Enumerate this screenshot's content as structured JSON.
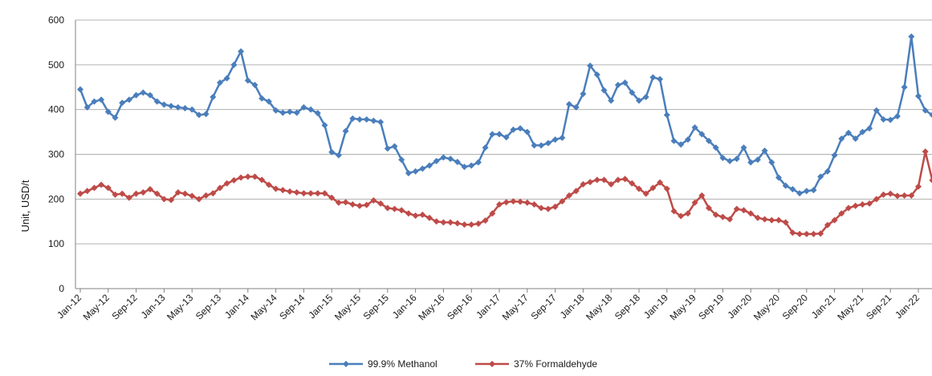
{
  "chart_data": {
    "type": "line",
    "title": "",
    "ylabel": "Unit, USD/t",
    "xlabel": "",
    "ylim": [
      0,
      600
    ],
    "y_ticks": [
      0,
      100,
      200,
      300,
      400,
      500,
      600
    ],
    "grid": "horizontal",
    "legend_position": "bottom",
    "x_tick_labels": [
      "Jan-12",
      "May-12",
      "Sep-12",
      "Jan-13",
      "May-13",
      "Sep-13",
      "Jan-14",
      "May-14",
      "Sep-14",
      "Jan-15",
      "May-15",
      "Sep-15",
      "Jan-16",
      "May-16",
      "Sep-16",
      "Jan-17",
      "May-17",
      "Sep-17",
      "Jan-18",
      "May-18",
      "Sep-18",
      "Jan-19",
      "May-19",
      "Sep-19",
      "Jan-20",
      "May-20",
      "Sep-20",
      "Jan-21",
      "May-21",
      "Sep-21",
      "Jan-22"
    ],
    "x_start_month": "Jan-12",
    "series": [
      {
        "name": "99.9% Methanol",
        "color": "#4a7ebb",
        "values": [
          445,
          405,
          418,
          422,
          395,
          382,
          415,
          422,
          432,
          438,
          432,
          418,
          411,
          408,
          405,
          403,
          400,
          388,
          390,
          428,
          460,
          470,
          500,
          530,
          465,
          455,
          425,
          418,
          398,
          393,
          395,
          393,
          405,
          400,
          392,
          365,
          305,
          298,
          352,
          380,
          378,
          378,
          375,
          372,
          313,
          318,
          288,
          258,
          262,
          268,
          275,
          285,
          293,
          290,
          283,
          272,
          275,
          282,
          315,
          345,
          345,
          338,
          355,
          358,
          350,
          320,
          320,
          325,
          333,
          337,
          412,
          405,
          435,
          498,
          478,
          443,
          420,
          455,
          460,
          438,
          420,
          428,
          472,
          468,
          388,
          330,
          322,
          333,
          360,
          345,
          330,
          315,
          292,
          285,
          290,
          315,
          282,
          288,
          308,
          282,
          248,
          230,
          222,
          213,
          218,
          220,
          250,
          262,
          298,
          335,
          348,
          335,
          350,
          358,
          398,
          378,
          377,
          385,
          450,
          563,
          430,
          398,
          388,
          383,
          400
        ]
      },
      {
        "name": "37% Formaldehyde",
        "color": "#be4b48",
        "values": [
          212,
          218,
          225,
          232,
          225,
          210,
          212,
          203,
          212,
          215,
          222,
          212,
          200,
          198,
          215,
          212,
          207,
          200,
          208,
          213,
          225,
          235,
          242,
          248,
          250,
          250,
          243,
          232,
          223,
          220,
          217,
          215,
          213,
          213,
          213,
          213,
          203,
          192,
          193,
          188,
          185,
          187,
          197,
          190,
          180,
          178,
          175,
          168,
          163,
          165,
          158,
          150,
          148,
          148,
          146,
          143,
          143,
          145,
          152,
          168,
          188,
          193,
          195,
          194,
          192,
          188,
          180,
          178,
          183,
          195,
          208,
          218,
          233,
          238,
          243,
          243,
          233,
          243,
          245,
          235,
          223,
          212,
          225,
          237,
          223,
          173,
          162,
          168,
          192,
          208,
          180,
          165,
          160,
          155,
          178,
          175,
          168,
          158,
          155,
          153,
          153,
          148,
          125,
          122,
          122,
          122,
          123,
          142,
          153,
          168,
          180,
          185,
          188,
          190,
          200,
          210,
          212,
          207,
          208,
          208,
          228,
          306,
          242,
          210,
          192,
          190
        ]
      }
    ]
  }
}
